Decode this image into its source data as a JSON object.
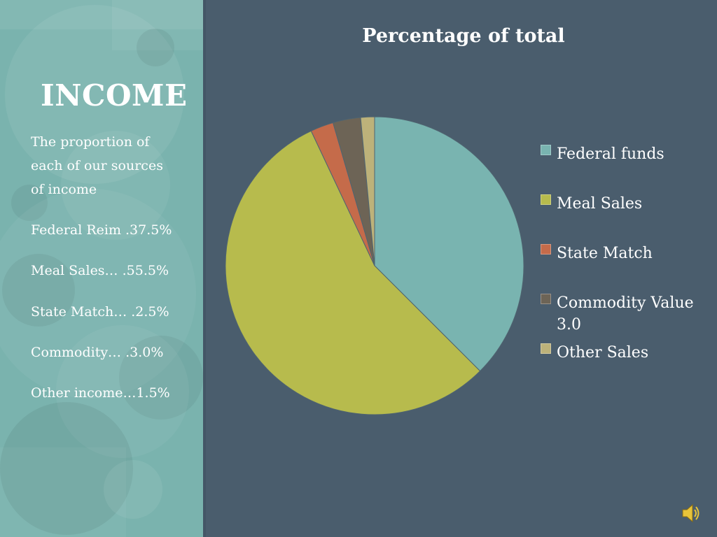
{
  "slide": {
    "title": "INCOME",
    "intro_lines": [
      "The proportion of",
      "each of our sources",
      "of  income"
    ],
    "stats": [
      "Federal Reim .37.5%",
      "Meal Sales…   .55.5%",
      "State Match…  .2.5%",
      "Commodity…  .3.0%",
      "Other income…1.5%"
    ]
  },
  "colors": {
    "background": "#4a5d6d",
    "left_panel": "#7ab3ae"
  },
  "icons": [
    "speaker-icon"
  ],
  "chart_data": {
    "type": "pie",
    "title": "Percentage of total",
    "categories": [
      "Federal funds",
      "Meal Sales",
      "State Match",
      "Commodity Value 3.0",
      "Other Sales"
    ],
    "values": [
      37.5,
      55.5,
      2.5,
      3.0,
      1.5
    ],
    "colors": [
      "#79b4b0",
      "#b7bb4d",
      "#c56b4a",
      "#6d6456",
      "#bdb27a"
    ],
    "legend": {
      "placement": "right",
      "labels": [
        [
          "Federal funds"
        ],
        [
          "Meal Sales"
        ],
        [
          "State Match"
        ],
        [
          "Commodity Value",
          "3.0"
        ],
        [
          "Other Sales"
        ]
      ]
    }
  }
}
